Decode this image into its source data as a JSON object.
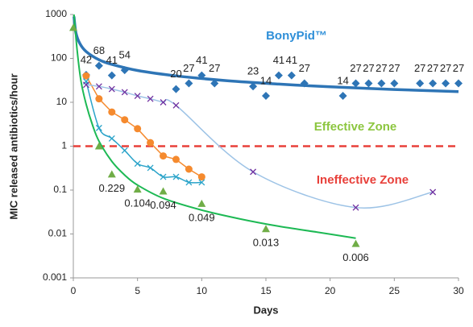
{
  "chart_data": {
    "type": "scatter",
    "xlabel": "Days",
    "ylabel": "MIC released antibiotics/hour",
    "xlim": [
      0,
      30
    ],
    "ylim": [
      0.001,
      1000
    ],
    "xticks": [
      0,
      5,
      10,
      15,
      20,
      25,
      30
    ],
    "yticks": [
      0.001,
      0.01,
      0.1,
      1,
      10,
      100,
      1000
    ],
    "yscale": "log",
    "grid": false,
    "reference_line": {
      "y": 1,
      "color": "#e8403a"
    },
    "annotations": [
      {
        "text": "BonyPid™",
        "color": "#2f8fd8"
      },
      {
        "text": "Effective Zone",
        "color": "#8cc63f"
      },
      {
        "text": "Ineffective Zone",
        "color": "#e8403a"
      }
    ],
    "series": [
      {
        "marker": "diamond",
        "color": "#2e75b6",
        "line_color": null,
        "data_labels": true,
        "x": [
          1,
          2,
          3,
          4,
          8,
          9,
          10,
          11,
          14,
          15,
          16,
          17,
          18,
          21,
          22,
          23,
          24,
          25,
          27,
          28,
          29,
          30
        ],
        "values": [
          42,
          68,
          41,
          54,
          20,
          27,
          41,
          27,
          23,
          14,
          41,
          41,
          27,
          14,
          27,
          27,
          27,
          27,
          27,
          27,
          27,
          27
        ]
      },
      {
        "marker": "circle",
        "color": "#f58a2e",
        "line_color": "#f58a2e",
        "smooth": false,
        "data_labels": false,
        "x": [
          1,
          2,
          3,
          4,
          5,
          6,
          7,
          8,
          9,
          10
        ],
        "values": [
          40,
          12,
          6,
          4,
          2.5,
          1.2,
          0.6,
          0.5,
          0.3,
          0.2
        ]
      },
      {
        "marker": "x",
        "color": "#2aa3c9",
        "line_color": "#2aa3c9",
        "smooth": true,
        "data_labels": false,
        "x": [
          1,
          2,
          3,
          4,
          5,
          6,
          7,
          8,
          9,
          10
        ],
        "values": [
          30,
          2.6,
          1.5,
          0.8,
          0.4,
          0.32,
          0.2,
          0.2,
          0.15,
          0.15
        ]
      },
      {
        "marker": "x",
        "color": "#7030a0",
        "line_color": "#9dc3e6",
        "smooth": true,
        "data_labels": false,
        "x": [
          1,
          2,
          3,
          4,
          5,
          6,
          7,
          8,
          14,
          22,
          28
        ],
        "values": [
          25,
          23,
          20,
          17,
          14,
          12,
          10,
          8.5,
          0.26,
          0.04,
          0.09
        ]
      },
      {
        "marker": "triangle",
        "color": "#70ad47",
        "line_color": null,
        "data_labels": false,
        "x": [
          0,
          2,
          3,
          5,
          7,
          10,
          15,
          22
        ],
        "values": [
          500,
          1,
          0.229,
          0.104,
          0.094,
          0.049,
          0.013,
          0.006
        ],
        "value_labels": [
          null,
          null,
          "0.229",
          "0.104",
          "0.094",
          "0.049",
          "0.013",
          "0.006"
        ]
      }
    ],
    "trendlines": [
      {
        "color": "#2e75b6",
        "width": 3.5,
        "x": [
          0.05,
          0.2,
          0.5,
          1,
          2,
          3,
          5,
          8,
          12,
          16,
          20,
          25,
          30
        ],
        "values": [
          900,
          384,
          220,
          143,
          93,
          73,
          53,
          40,
          31,
          26,
          22.5,
          19.6,
          17.5
        ]
      },
      {
        "color": "#1db954",
        "width": 2,
        "x": [
          0.05,
          0.3,
          0.6,
          1,
          1.5,
          2,
          3,
          4,
          5,
          7,
          10,
          13,
          16,
          19,
          22
        ],
        "values": [
          1000,
          150,
          30,
          9,
          3,
          1.3,
          0.45,
          0.22,
          0.13,
          0.065,
          0.035,
          0.022,
          0.015,
          0.011,
          0.008
        ]
      }
    ]
  }
}
